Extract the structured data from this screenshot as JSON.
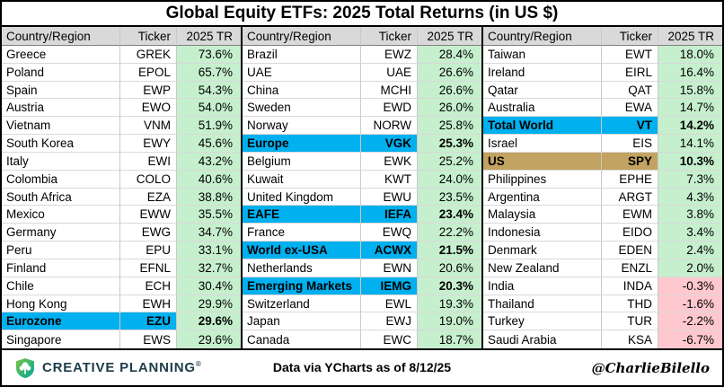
{
  "title": "Global Equity ETFs: 2025 Total Returns (in US $)",
  "headers": {
    "country": "Country/Region",
    "ticker": "Ticker",
    "tr": "2025 TR"
  },
  "footer": {
    "logo_text": "CREATIVE PLANNING",
    "logo_mark": "®",
    "source": "Data via YCharts as of 8/12/25",
    "handle": "@CharlieBilello"
  },
  "colors": {
    "cyan": "#00B0EF",
    "tan": "#C3A361",
    "green": "#C6EFCE",
    "red": "#FFC7CE",
    "header_gray": "#D9D9D9",
    "logo": "#1C3C4A"
  },
  "chart_data": {
    "type": "table",
    "title": "Global Equity ETFs: 2025 Total Returns (in US $)",
    "columns": [
      "Country/Region",
      "Ticker",
      "2025 TR"
    ],
    "groups": [
      [
        {
          "country": "Greece",
          "ticker": "GREK",
          "tr": "73.6%",
          "hl": null
        },
        {
          "country": "Poland",
          "ticker": "EPOL",
          "tr": "65.7%",
          "hl": null
        },
        {
          "country": "Spain",
          "ticker": "EWP",
          "tr": "54.3%",
          "hl": null
        },
        {
          "country": "Austria",
          "ticker": "EWO",
          "tr": "54.0%",
          "hl": null
        },
        {
          "country": "Vietnam",
          "ticker": "VNM",
          "tr": "51.9%",
          "hl": null
        },
        {
          "country": "South Korea",
          "ticker": "EWY",
          "tr": "45.6%",
          "hl": null
        },
        {
          "country": "Italy",
          "ticker": "EWI",
          "tr": "43.2%",
          "hl": null
        },
        {
          "country": "Colombia",
          "ticker": "COLO",
          "tr": "40.6%",
          "hl": null
        },
        {
          "country": "South Africa",
          "ticker": "EZA",
          "tr": "38.8%",
          "hl": null
        },
        {
          "country": "Mexico",
          "ticker": "EWW",
          "tr": "35.5%",
          "hl": null
        },
        {
          "country": "Germany",
          "ticker": "EWG",
          "tr": "34.7%",
          "hl": null
        },
        {
          "country": "Peru",
          "ticker": "EPU",
          "tr": "33.1%",
          "hl": null
        },
        {
          "country": "Finland",
          "ticker": "EFNL",
          "tr": "32.7%",
          "hl": null
        },
        {
          "country": "Chile",
          "ticker": "ECH",
          "tr": "30.4%",
          "hl": null
        },
        {
          "country": "Hong Kong",
          "ticker": "EWH",
          "tr": "29.9%",
          "hl": null
        },
        {
          "country": "Eurozone",
          "ticker": "EZU",
          "tr": "29.6%",
          "hl": "cyan"
        },
        {
          "country": "Singapore",
          "ticker": "EWS",
          "tr": "29.6%",
          "hl": null
        }
      ],
      [
        {
          "country": "Brazil",
          "ticker": "EWZ",
          "tr": "28.4%",
          "hl": null
        },
        {
          "country": "UAE",
          "ticker": "UAE",
          "tr": "26.6%",
          "hl": null
        },
        {
          "country": "China",
          "ticker": "MCHI",
          "tr": "26.6%",
          "hl": null
        },
        {
          "country": "Sweden",
          "ticker": "EWD",
          "tr": "26.0%",
          "hl": null
        },
        {
          "country": "Norway",
          "ticker": "NORW",
          "tr": "25.8%",
          "hl": null
        },
        {
          "country": "Europe",
          "ticker": "VGK",
          "tr": "25.3%",
          "hl": "cyan"
        },
        {
          "country": "Belgium",
          "ticker": "EWK",
          "tr": "25.2%",
          "hl": null
        },
        {
          "country": "Kuwait",
          "ticker": "KWT",
          "tr": "24.0%",
          "hl": null
        },
        {
          "country": "United Kingdom",
          "ticker": "EWU",
          "tr": "23.5%",
          "hl": null
        },
        {
          "country": "EAFE",
          "ticker": "IEFA",
          "tr": "23.4%",
          "hl": "cyan"
        },
        {
          "country": "France",
          "ticker": "EWQ",
          "tr": "22.2%",
          "hl": null
        },
        {
          "country": "World ex-USA",
          "ticker": "ACWX",
          "tr": "21.5%",
          "hl": "cyan"
        },
        {
          "country": "Netherlands",
          "ticker": "EWN",
          "tr": "20.6%",
          "hl": null
        },
        {
          "country": "Emerging Markets",
          "ticker": "IEMG",
          "tr": "20.3%",
          "hl": "cyan"
        },
        {
          "country": "Switzerland",
          "ticker": "EWL",
          "tr": "19.3%",
          "hl": null
        },
        {
          "country": "Japan",
          "ticker": "EWJ",
          "tr": "19.0%",
          "hl": null
        },
        {
          "country": "Canada",
          "ticker": "EWC",
          "tr": "18.7%",
          "hl": null
        }
      ],
      [
        {
          "country": "Taiwan",
          "ticker": "EWT",
          "tr": "18.0%",
          "hl": null
        },
        {
          "country": "Ireland",
          "ticker": "EIRL",
          "tr": "16.4%",
          "hl": null
        },
        {
          "country": "Qatar",
          "ticker": "QAT",
          "tr": "15.8%",
          "hl": null
        },
        {
          "country": "Australia",
          "ticker": "EWA",
          "tr": "14.7%",
          "hl": null
        },
        {
          "country": "Total World",
          "ticker": "VT",
          "tr": "14.2%",
          "hl": "cyan"
        },
        {
          "country": "Israel",
          "ticker": "EIS",
          "tr": "14.1%",
          "hl": null
        },
        {
          "country": "US",
          "ticker": "SPY",
          "tr": "10.3%",
          "hl": "tan"
        },
        {
          "country": "Philippines",
          "ticker": "EPHE",
          "tr": "7.3%",
          "hl": null
        },
        {
          "country": "Argentina",
          "ticker": "ARGT",
          "tr": "4.3%",
          "hl": null
        },
        {
          "country": "Malaysia",
          "ticker": "EWM",
          "tr": "3.8%",
          "hl": null
        },
        {
          "country": "Indonesia",
          "ticker": "EIDO",
          "tr": "3.4%",
          "hl": null
        },
        {
          "country": "Denmark",
          "ticker": "EDEN",
          "tr": "2.4%",
          "hl": null
        },
        {
          "country": "New Zealand",
          "ticker": "ENZL",
          "tr": "2.0%",
          "hl": null
        },
        {
          "country": "India",
          "ticker": "INDA",
          "tr": "-0.3%",
          "hl": null
        },
        {
          "country": "Thailand",
          "ticker": "THD",
          "tr": "-1.6%",
          "hl": null
        },
        {
          "country": "Turkey",
          "ticker": "TUR",
          "tr": "-2.2%",
          "hl": null
        },
        {
          "country": "Saudi Arabia",
          "ticker": "KSA",
          "tr": "-6.7%",
          "hl": null
        }
      ]
    ]
  }
}
